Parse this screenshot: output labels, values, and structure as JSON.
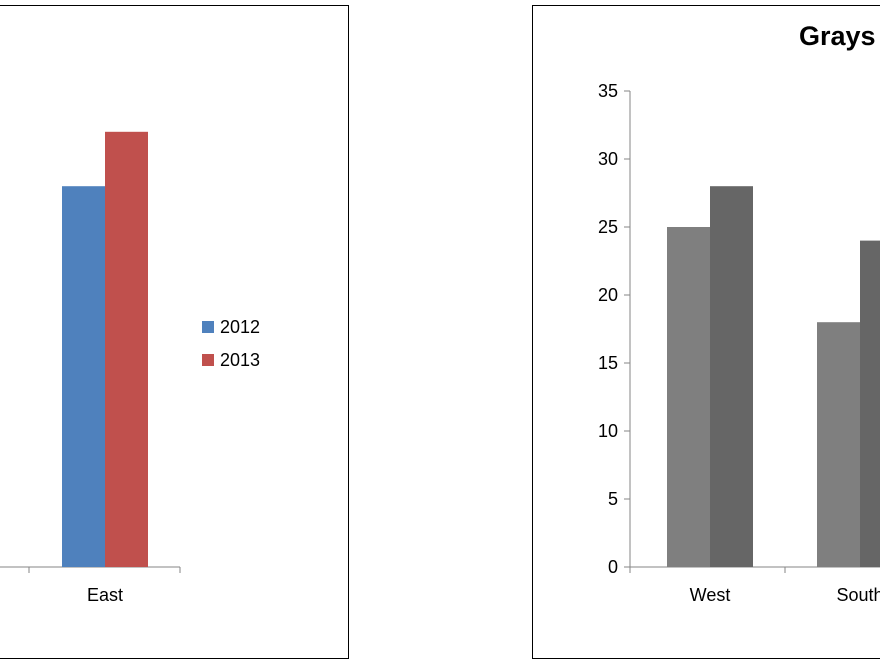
{
  "chart_data": [
    {
      "type": "bar",
      "title": "",
      "categories": [
        "East"
      ],
      "series": [
        {
          "name": "2012",
          "values": [
            28
          ],
          "color": "#4F81BD"
        },
        {
          "name": "2013",
          "values": [
            32
          ],
          "color": "#C0504D"
        }
      ],
      "ylim": [
        0,
        35
      ],
      "legend": "right",
      "grid": false
    },
    {
      "type": "bar",
      "title": "Grays",
      "categories": [
        "West",
        "South"
      ],
      "series": [
        {
          "values": [
            25,
            18
          ],
          "color": "#7F7F7F"
        },
        {
          "values": [
            28,
            24
          ],
          "color": "#666666"
        }
      ],
      "yticks": [
        "0",
        "5",
        "10",
        "15",
        "20",
        "25",
        "30",
        "35"
      ],
      "ylim": [
        0,
        35
      ],
      "grid": false
    }
  ]
}
